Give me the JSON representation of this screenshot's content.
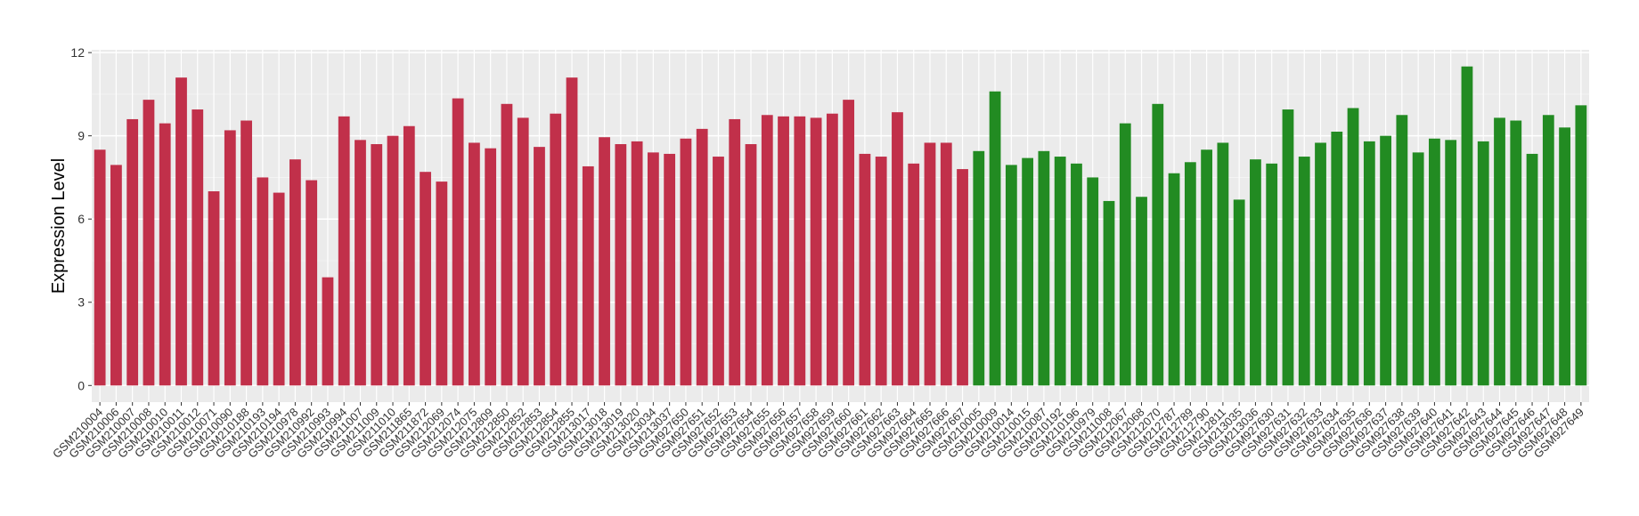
{
  "chart_data": {
    "type": "bar",
    "y_label": "Expression Level",
    "categories": [
      "GSM210004",
      "GSM210006",
      "GSM210007",
      "GSM210008",
      "GSM210010",
      "GSM210011",
      "GSM210012",
      "GSM210071",
      "GSM210090",
      "GSM210188",
      "GSM210193",
      "GSM210194",
      "GSM210978",
      "GSM210992",
      "GSM210993",
      "GSM210994",
      "GSM211007",
      "GSM211009",
      "GSM211010",
      "GSM211865",
      "GSM211872",
      "GSM212069",
      "GSM212074",
      "GSM212075",
      "GSM212809",
      "GSM212850",
      "GSM212852",
      "GSM212853",
      "GSM212854",
      "GSM212855",
      "GSM213017",
      "GSM213018",
      "GSM213019",
      "GSM213020",
      "GSM213034",
      "GSM213037",
      "GSM927650",
      "GSM927651",
      "GSM927652",
      "GSM927653",
      "GSM927654",
      "GSM927655",
      "GSM927656",
      "GSM927657",
      "GSM927658",
      "GSM927659",
      "GSM927660",
      "GSM927661",
      "GSM927662",
      "GSM927663",
      "GSM927664",
      "GSM927665",
      "GSM927666",
      "GSM927667",
      "GSM210005",
      "GSM210009",
      "GSM210014",
      "GSM210015",
      "GSM210087",
      "GSM210192",
      "GSM210196",
      "GSM210979",
      "GSM211008",
      "GSM212067",
      "GSM212068",
      "GSM212070",
      "GSM212787",
      "GSM212789",
      "GSM212790",
      "GSM212811",
      "GSM213035",
      "GSM213036",
      "GSM927630",
      "GSM927631",
      "GSM927632",
      "GSM927633",
      "GSM927634",
      "GSM927635",
      "GSM927636",
      "GSM927637",
      "GSM927638",
      "GSM927639",
      "GSM927640",
      "GSM927641",
      "GSM927642",
      "GSM927643",
      "GSM927644",
      "GSM927645",
      "GSM927646",
      "GSM927647",
      "GSM927648",
      "GSM927649"
    ],
    "values": [
      8.5,
      7.95,
      9.6,
      10.3,
      9.45,
      11.1,
      9.95,
      7.0,
      9.2,
      9.55,
      7.5,
      6.95,
      8.15,
      7.4,
      3.9,
      9.7,
      8.85,
      8.7,
      9.0,
      9.35,
      7.7,
      7.35,
      10.35,
      8.75,
      8.55,
      10.15,
      9.65,
      8.6,
      9.8,
      11.1,
      7.9,
      8.95,
      8.7,
      8.8,
      8.4,
      8.35,
      8.9,
      9.25,
      8.25,
      9.6,
      8.7,
      9.75,
      9.7,
      9.7,
      9.65,
      9.8,
      10.3,
      8.35,
      8.25,
      9.85,
      8.0,
      8.75,
      8.75,
      7.8,
      8.45,
      10.6,
      7.95,
      8.2,
      8.45,
      8.25,
      8.0,
      7.5,
      6.65,
      9.45,
      6.8,
      10.15,
      7.65,
      8.05,
      8.5,
      8.75,
      6.7,
      8.15,
      8.0,
      9.95,
      8.25,
      8.75,
      9.15,
      10.0,
      8.8,
      9.0,
      9.75,
      8.4,
      8.9,
      8.85,
      11.5,
      8.8,
      9.65,
      9.55,
      8.35,
      9.75,
      9.3,
      10.1
    ],
    "colors": [
      "#c1304a",
      "#c1304a",
      "#c1304a",
      "#c1304a",
      "#c1304a",
      "#c1304a",
      "#c1304a",
      "#c1304a",
      "#c1304a",
      "#c1304a",
      "#c1304a",
      "#c1304a",
      "#c1304a",
      "#c1304a",
      "#c1304a",
      "#c1304a",
      "#c1304a",
      "#c1304a",
      "#c1304a",
      "#c1304a",
      "#c1304a",
      "#c1304a",
      "#c1304a",
      "#c1304a",
      "#c1304a",
      "#c1304a",
      "#c1304a",
      "#c1304a",
      "#c1304a",
      "#c1304a",
      "#c1304a",
      "#c1304a",
      "#c1304a",
      "#c1304a",
      "#c1304a",
      "#c1304a",
      "#c1304a",
      "#c1304a",
      "#c1304a",
      "#c1304a",
      "#c1304a",
      "#c1304a",
      "#c1304a",
      "#c1304a",
      "#c1304a",
      "#c1304a",
      "#c1304a",
      "#c1304a",
      "#c1304a",
      "#c1304a",
      "#c1304a",
      "#c1304a",
      "#c1304a",
      "#c1304a",
      "#228b22",
      "#228b22",
      "#228b22",
      "#228b22",
      "#228b22",
      "#228b22",
      "#228b22",
      "#228b22",
      "#228b22",
      "#228b22",
      "#228b22",
      "#228b22",
      "#228b22",
      "#228b22",
      "#228b22",
      "#228b22",
      "#228b22",
      "#228b22",
      "#228b22",
      "#228b22",
      "#228b22",
      "#228b22",
      "#228b22",
      "#228b22",
      "#228b22",
      "#228b22",
      "#228b22",
      "#228b22",
      "#228b22",
      "#228b22",
      "#228b22",
      "#228b22",
      "#228b22",
      "#228b22",
      "#228b22",
      "#228b22",
      "#228b22",
      "#228b22"
    ],
    "ylim": [
      -0.6,
      12.1
    ],
    "yticks": [
      0,
      3,
      6,
      9,
      12
    ],
    "grid": true
  }
}
